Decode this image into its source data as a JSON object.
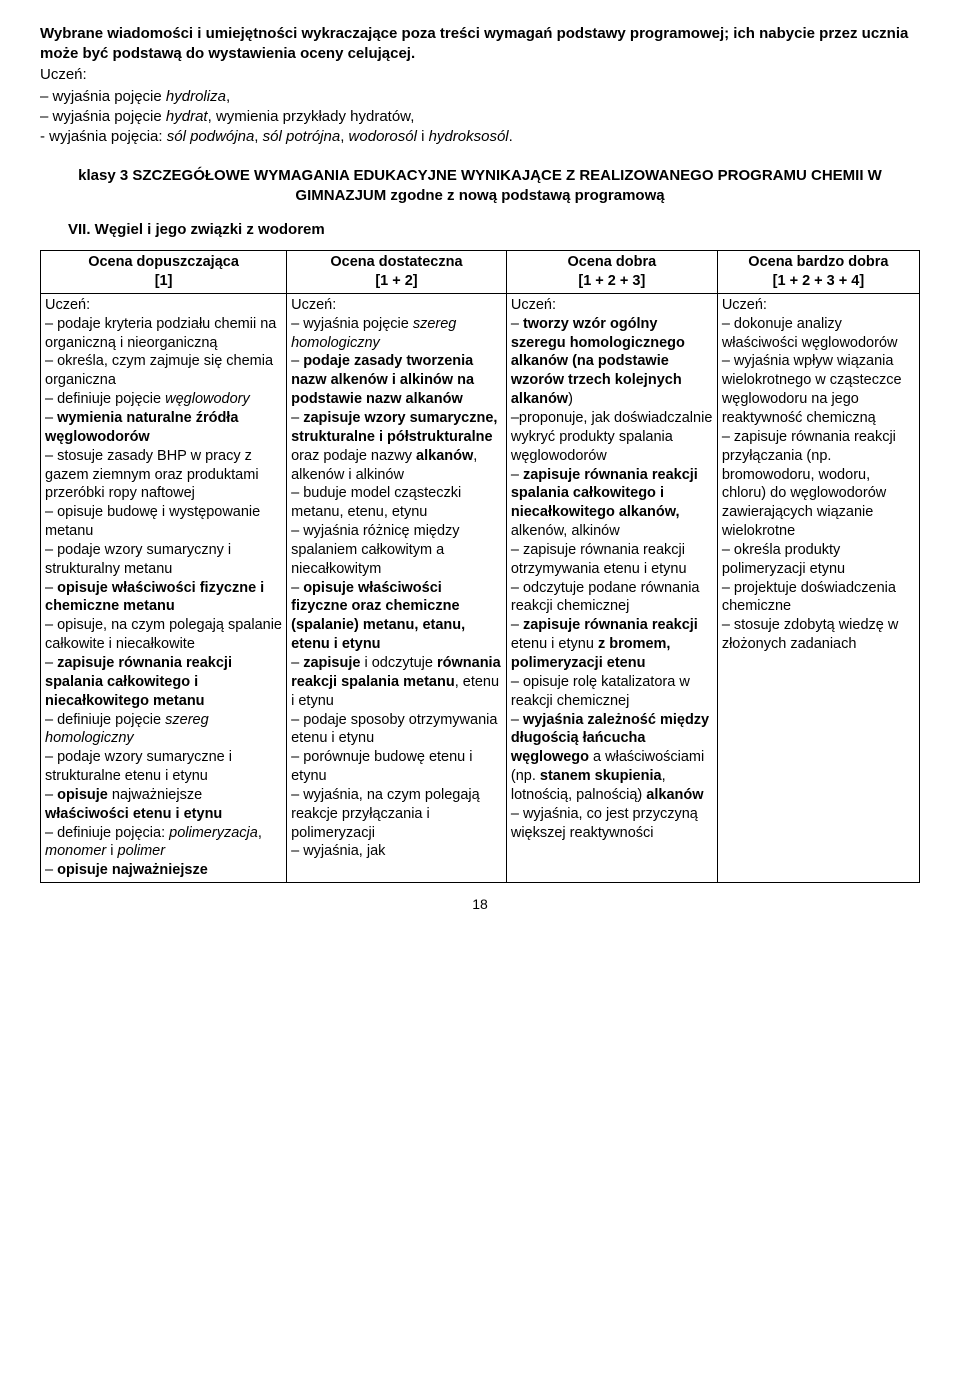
{
  "intro": {
    "heading": "Wybrane wiadomości i umiejętności wykraczające poza treści wymagań podstawy programowej; ich nabycie przez ucznia może być podstawą do wystawienia oceny celującej.",
    "lead": "Uczeń:",
    "items_html": [
      "– wyjaśnia pojęcie <i>hydroliza</i>,",
      "– wyjaśnia pojęcie <i>hydrat</i>, wymienia przykłady hydratów,",
      "- wyjaśnia pojęcia: <i>sól podwójna</i>, <i>sól potrójna</i>, <i>wodorosól</i> i <i>hydroksosól</i>."
    ]
  },
  "klasy_heading": "klasy 3 SZCZEGÓŁOWE WYMAGANIA EDUKACYJNE WYNIKAJĄCE Z REALIZOWANEGO PROGRAMU CHEMII W GIMNAZJUM zgodne z nową podstawą programową",
  "section_title": "VII. Węgiel i jego związki z wodorem",
  "table": {
    "headers": [
      {
        "line1": "Ocena dopuszczająca",
        "line2": "[1]"
      },
      {
        "line1": "Ocena dostateczna",
        "line2": "[1 + 2]"
      },
      {
        "line1": "Ocena dobra",
        "line2": "[1 + 2 + 3]"
      },
      {
        "line1": "Ocena bardzo dobra",
        "line2": "[1 + 2 + 3 + 4]"
      }
    ],
    "cells_html": [
      "Uczeń:<br>– podaje kryteria podziału chemii na organiczną i nieorganiczną<br>– określa, czym zajmuje się chemia organiczna<br>– definiuje pojęcie <i>węglowodory</i><br>– <b>wymienia naturalne źródła węglowodorów</b><br>– stosuje zasady BHP w pracy z gazem ziemnym oraz produktami przeróbki ropy naftowej<br>– opisuje budowę i występowanie metanu<br>– podaje wzory sumaryczny i strukturalny metanu<br>– <b>opisuje właściwości fizyczne i chemiczne metanu</b><br>– opisuje, na czym polegają spalanie całkowite i niecałkowite<br>– <b>zapisuje równania reakcji spalania całkowitego i niecałkowitego metanu</b><br>– definiuje pojęcie <i>szereg homologiczny</i><br>– podaje wzory sumaryczne i strukturalne etenu i etynu<br>– <b>opisuje</b> najważniejsze <b>właściwości etenu i etynu</b><br>– definiuje pojęcia: <i>polimeryzacja</i>, <i>monomer</i> i <i>polimer</i><br>– <b>opisuje najważniejsze</b>",
      "Uczeń:<br>– wyjaśnia pojęcie <i>szereg homologiczny</i><br>– <b>podaje zasady tworzenia nazw alkenów i alkinów na podstawie nazw alkanów</b><br>– <b>zapisuje wzory sumaryczne, strukturalne i półstrukturalne</b> oraz podaje nazwy <b>alkanów</b>, alkenów i alkinów<br>– buduje model cząsteczki metanu, etenu, etynu<br>– wyjaśnia różnicę między spalaniem całkowitym a niecałkowitym<br>– <b>opisuje właściwości fizyczne oraz chemiczne (spalanie) metanu, etanu, etenu i etynu</b><br>– <b>zapisuje</b> i odczytuje <b>równania reakcji spalania metanu</b>, etenu i etynu<br>– podaje sposoby otrzymywania etenu i etynu<br>– porównuje budowę etenu i etynu<br>– wyjaśnia, na czym polegają reakcje przyłączania i polimeryzacji<br>– wyjaśnia, jak",
      "Uczeń:<br>– <b>tworzy wzór ogólny szeregu homologicznego alkanów (na podstawie wzorów trzech kolejnych alkanów</b>)<br>–proponuje, jak doświadczalnie wykryć produkty spalania węglowodorów<br>– <b>zapisuje równania reakcji spalania całkowitego i niecałkowitego alkanów,</b> alkenów, alkinów<br>– zapisuje równania reakcji otrzymywania etenu i etynu<br>– odczytuje podane równania reakcji chemicznej<br>– <b>zapisuje równania reakcji</b> etenu i etynu <b>z bromem, polimeryzacji etenu</b><br>– opisuje rolę katalizatora w reakcji chemicznej<br>– <b>wyjaśnia zależność między długością łańcucha węglowego</b> a właściwościami (np. <b>stanem skupienia</b>, lotnością, palnością) <b>alkanów</b><br>– wyjaśnia, co jest przyczyną większej reaktywności",
      "Uczeń:<br>– dokonuje analizy właściwości węglowodorów<br>– wyjaśnia wpływ wiązania wielokrotnego w cząsteczce węglowodoru na jego reaktywność chemiczną<br>– zapisuje równania reakcji przyłączania (np. bromowodoru, wodoru, chloru) do węglowodorów zawierających wiązanie wielokrotne<br>– określa produkty polimeryzacji etynu<br>– projektuje doświadczenia chemiczne<br>– stosuje zdobytą wiedzę w złożonych zadaniach"
    ]
  },
  "page_number": "18",
  "colors": {
    "background": "#ffffff",
    "text": "#000000",
    "border": "#000000"
  }
}
